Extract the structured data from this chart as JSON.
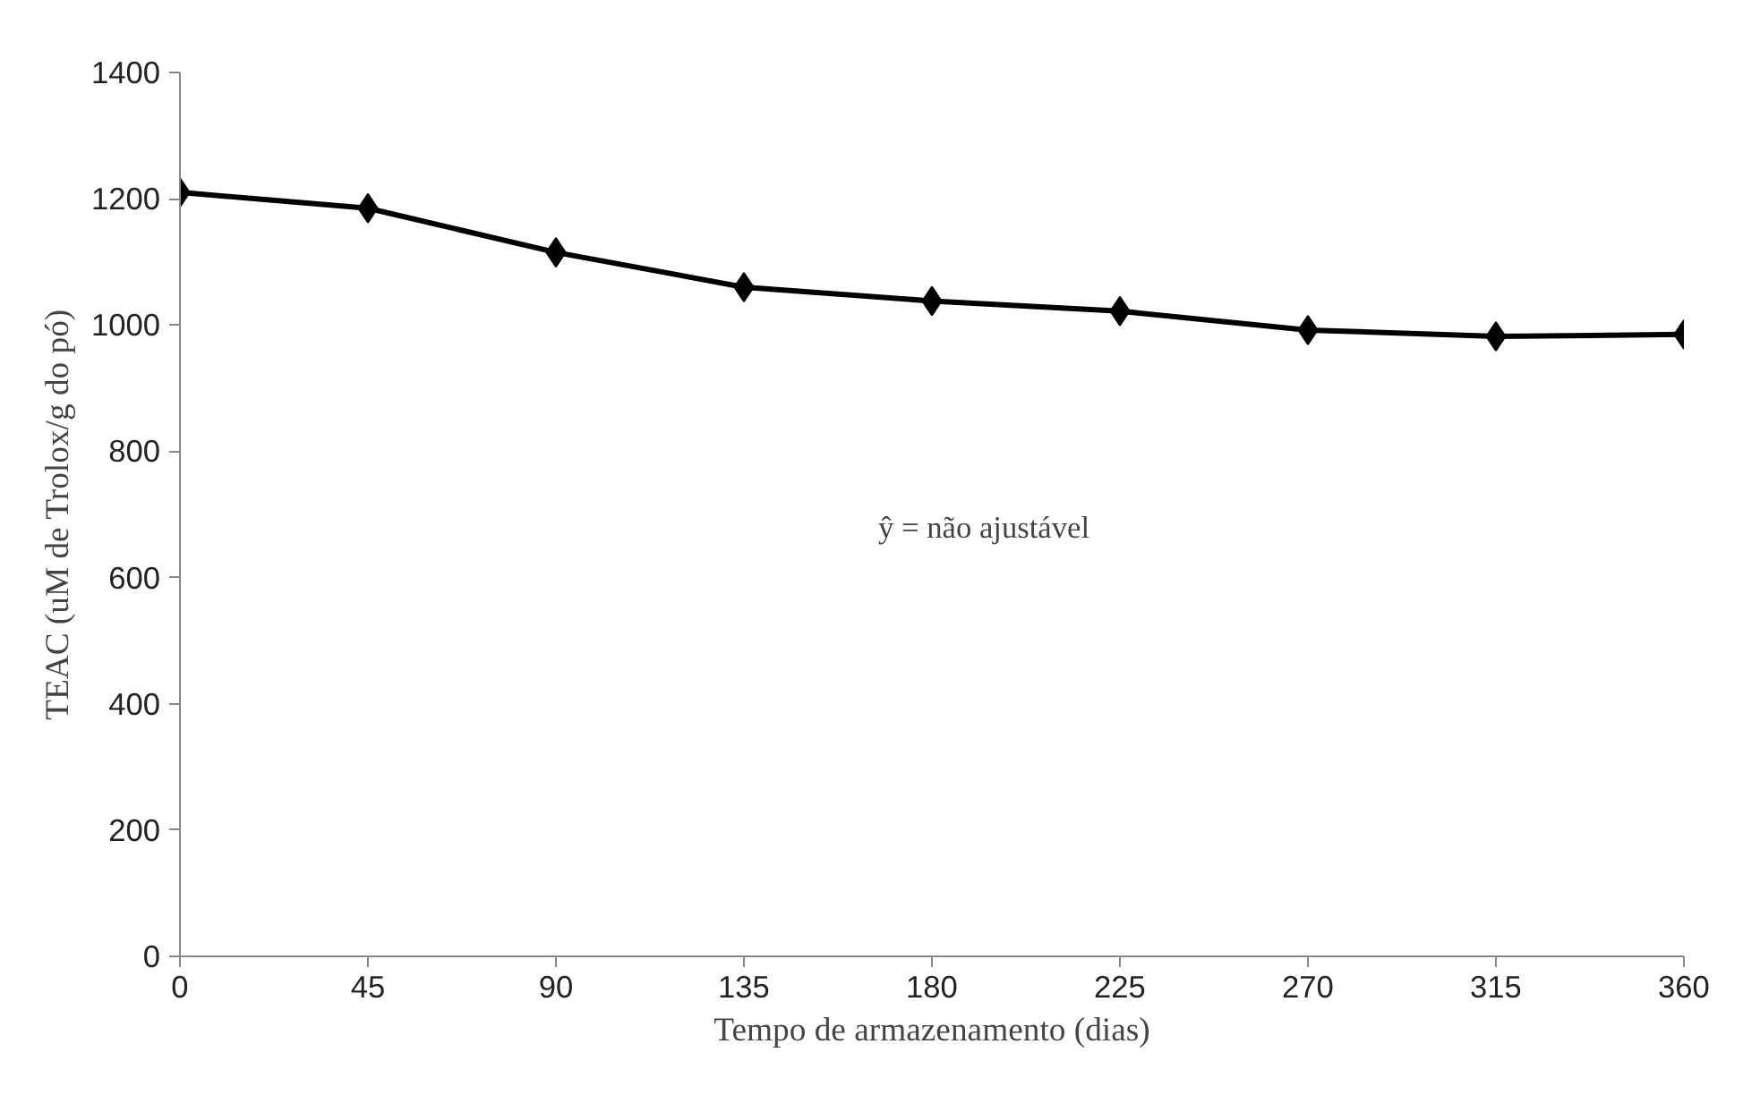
{
  "chart_data": {
    "type": "line",
    "xlabel": "Tempo de armazenamento (dias)",
    "ylabel": "TEAC (uM de Trolox/g do pó)",
    "x": [
      0,
      45,
      90,
      135,
      180,
      225,
      270,
      315,
      360
    ],
    "series": [
      {
        "color": "#000000",
        "values": [
          1210,
          1185,
          1115,
          1060,
          1038,
          1022,
          992,
          982,
          985
        ]
      }
    ],
    "xlim": [
      0,
      360
    ],
    "xticks": [
      0,
      45,
      90,
      135,
      180,
      225,
      270,
      315,
      360
    ],
    "ylim": [
      0,
      1400
    ],
    "yticks": [
      0,
      200,
      400,
      600,
      800,
      1000,
      1200,
      1400
    ],
    "annotations": [
      "ŷ = não ajustável"
    ],
    "grid": false,
    "marker": "diamond",
    "line_style": "solid"
  }
}
